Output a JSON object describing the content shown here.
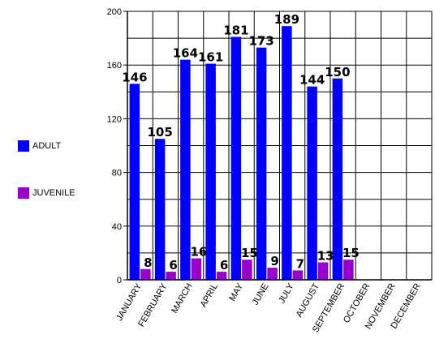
{
  "chart_data": {
    "type": "bar",
    "categories": [
      "JANUARY",
      "FEBRUARY",
      "MARCH",
      "APRIL",
      "MAY",
      "JUNE",
      "JULY",
      "AUGUST",
      "SEPTEMBER",
      "OCTOBER",
      "NOVEMBER",
      "DECEMBER"
    ],
    "series": [
      {
        "name": "ADULT",
        "color": "#0000ff",
        "values": [
          146,
          105,
          164,
          161,
          181,
          173,
          189,
          144,
          150,
          null,
          null,
          null
        ]
      },
      {
        "name": "JUVENILE",
        "color": "#9900cc",
        "values": [
          8,
          6,
          16,
          6,
          15,
          9,
          7,
          13,
          15,
          null,
          null,
          null
        ]
      }
    ],
    "ylim": [
      0,
      200
    ],
    "yticks": [
      0,
      40,
      80,
      120,
      160,
      200
    ],
    "grid": true,
    "legend_position": "left",
    "title": "",
    "xlabel": "",
    "ylabel": ""
  }
}
